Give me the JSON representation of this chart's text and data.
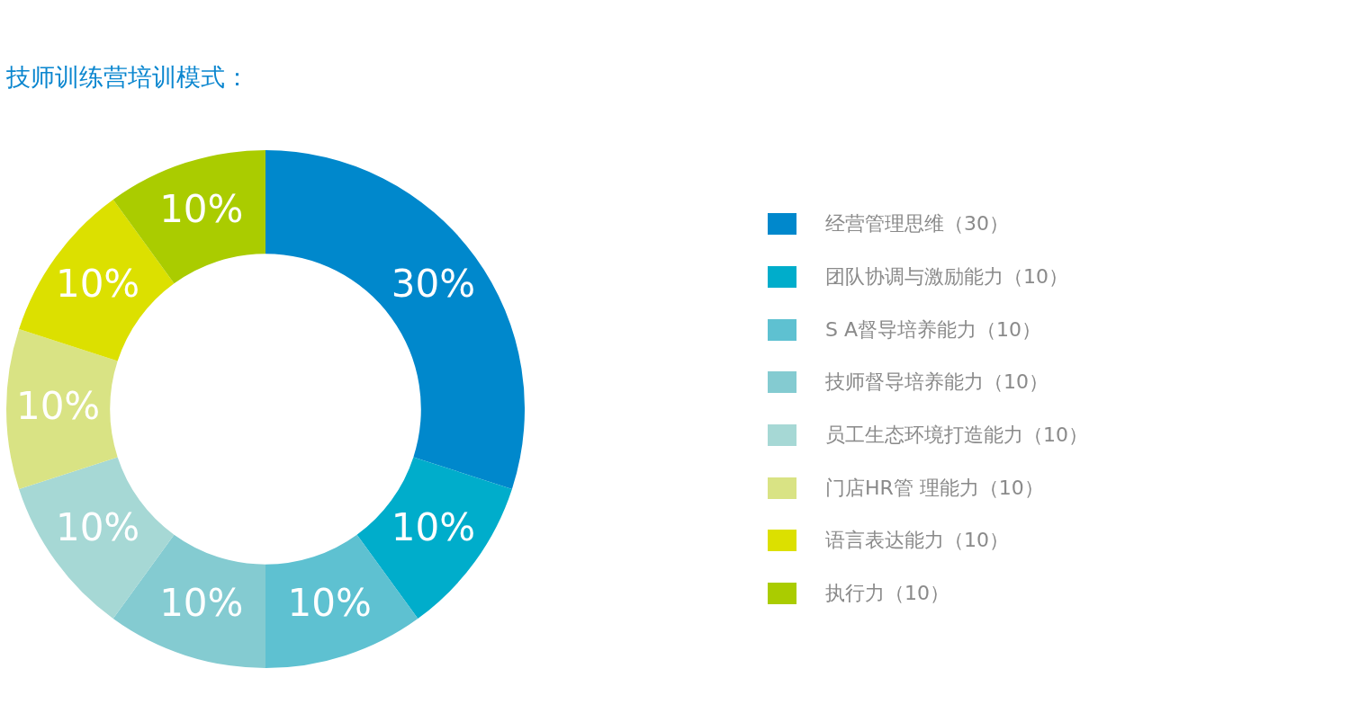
{
  "chart_data": {
    "type": "donut",
    "title": "技师训练营培训模式：",
    "categories": [
      "经营管理思维（30）",
      "团队协调与激励能力（10）",
      "S A督导培养能力（10）",
      "技师督导培养能力（10）",
      "员工生态环境打造能力（10）",
      "门店HR管 理能力（10）",
      "语言表达能力（10）",
      "执行力（10）"
    ],
    "values": [
      30,
      10,
      10,
      10,
      10,
      10,
      10,
      10
    ],
    "colors": [
      "#0088cc",
      "#00adcb",
      "#5ec1d1",
      "#84cbd1",
      "#a6d8d5",
      "#d9e384",
      "#dce000",
      "#aacc00"
    ],
    "value_labels": [
      "30%",
      "10%",
      "10%",
      "10%",
      "10%",
      "10%",
      "10%",
      "10%"
    ],
    "legend": "right"
  }
}
